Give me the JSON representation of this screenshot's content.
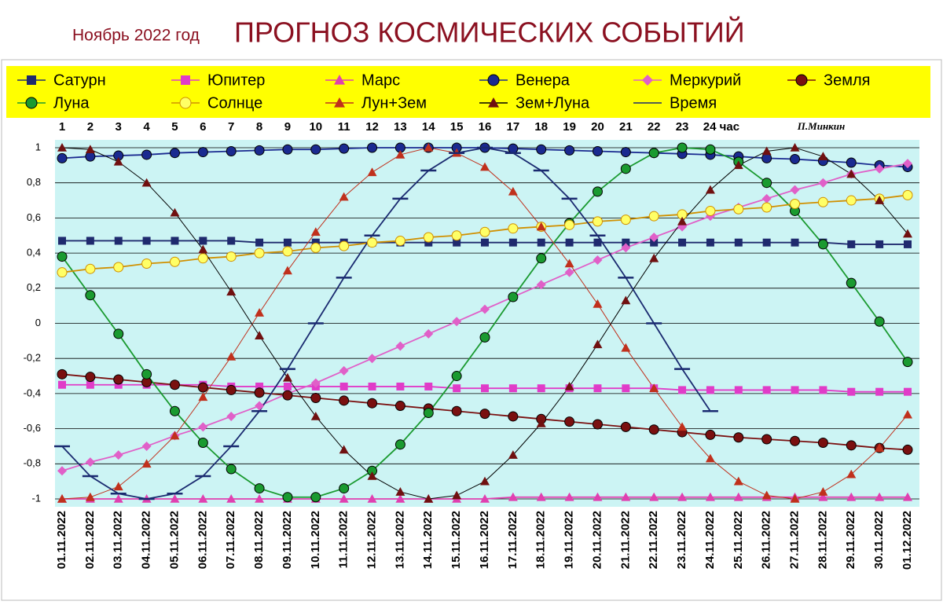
{
  "chart_data": {
    "type": "line",
    "subtitle": "Ноябрь 2022 год",
    "title": "ПРОГНОЗ КОСМИЧЕСКИХ СОБЫТИЙ",
    "hours": [
      "1",
      "2",
      "3",
      "4",
      "5",
      "6",
      "7",
      "8",
      "9",
      "10",
      "11",
      "12",
      "13",
      "14",
      "15",
      "16",
      "17",
      "18",
      "19",
      "20",
      "21",
      "22",
      "23",
      "24 час"
    ],
    "author": "П.Минкин",
    "categories": [
      "01.11.2022",
      "02.11.2022",
      "03.11.2022",
      "04.11.2022",
      "05.11.2022",
      "06.11.2022",
      "07.11.2022",
      "08.11.2022",
      "09.11.2022",
      "10.11.2022",
      "11.11.2022",
      "12.11.2022",
      "13.11.2022",
      "14.11.2022",
      "15.11.2022",
      "16.11.2022",
      "17.11.2022",
      "18.11.2022",
      "19.11.2022",
      "20.11.2022",
      "21.11.2022",
      "22.11.2022",
      "23.11.2022",
      "24.11.2022",
      "25.11.2022",
      "26.11.2022",
      "27.11.2022",
      "28.11.2022",
      "29.11.2022",
      "30.11.2022",
      "01.12.2022"
    ],
    "ylim": [
      -1,
      1
    ],
    "yticks": [
      {
        "value": -1,
        "label": "-1"
      },
      {
        "value": -0.8,
        "label": "-0,8"
      },
      {
        "value": -0.6,
        "label": "-0,6"
      },
      {
        "value": -0.4,
        "label": "-0,4"
      },
      {
        "value": -0.2,
        "label": "-0,2"
      },
      0,
      {
        "value": 0.2,
        "label": "0,2"
      },
      {
        "value": 0.4,
        "label": "0,4"
      },
      {
        "value": 0.6,
        "label": "0,6"
      },
      {
        "value": 0.8,
        "label": "0,8"
      },
      1
    ],
    "grid": true,
    "series": [
      {
        "name": "Сатурн",
        "color": "#1f2a6e",
        "marker": "square",
        "values": [
          0.47,
          0.47,
          0.47,
          0.47,
          0.47,
          0.47,
          0.47,
          0.46,
          0.46,
          0.46,
          0.46,
          0.46,
          0.46,
          0.46,
          0.46,
          0.46,
          0.46,
          0.46,
          0.46,
          0.46,
          0.46,
          0.46,
          0.46,
          0.46,
          0.46,
          0.46,
          0.46,
          0.46,
          0.45,
          0.45,
          0.45
        ]
      },
      {
        "name": "Юпитер",
        "color": "#e03cc8",
        "marker": "square",
        "values": [
          -0.35,
          -0.35,
          -0.35,
          -0.35,
          -0.35,
          -0.35,
          -0.36,
          -0.36,
          -0.36,
          -0.36,
          -0.36,
          -0.36,
          -0.36,
          -0.36,
          -0.37,
          -0.37,
          -0.37,
          -0.37,
          -0.37,
          -0.37,
          -0.37,
          -0.37,
          -0.38,
          -0.38,
          -0.38,
          -0.38,
          -0.38,
          -0.38,
          -0.39,
          -0.39,
          -0.39
        ]
      },
      {
        "name": "Марс",
        "color": "#e040b0",
        "marker": "triangle",
        "values": [
          -1,
          -1,
          -1,
          -1,
          -1,
          -1,
          -1,
          -1,
          -1,
          -1,
          -1,
          -1,
          -1,
          -1,
          -1,
          -1,
          -0.99,
          -0.99,
          -0.99,
          -0.99,
          -0.99,
          -0.99,
          -0.99,
          -0.99,
          -0.99,
          -0.99,
          -0.99,
          -0.99,
          -0.99,
          -0.99,
          -0.99
        ]
      },
      {
        "name": "Венера",
        "color": "#1a2a90",
        "marker": "circle",
        "values": [
          0.94,
          0.95,
          0.955,
          0.96,
          0.97,
          0.975,
          0.98,
          0.985,
          0.99,
          0.99,
          0.995,
          1,
          1,
          1,
          1,
          1,
          0.995,
          0.99,
          0.985,
          0.98,
          0.975,
          0.97,
          0.965,
          0.96,
          0.95,
          0.94,
          0.935,
          0.925,
          0.915,
          0.9,
          0.89
        ]
      },
      {
        "name": "Меркурий",
        "color": "#e060c8",
        "marker": "diamond",
        "values": [
          -0.84,
          -0.79,
          -0.75,
          -0.7,
          -0.64,
          -0.59,
          -0.53,
          -0.47,
          -0.4,
          -0.34,
          -0.27,
          -0.2,
          -0.13,
          -0.06,
          0.01,
          0.08,
          0.15,
          0.22,
          0.29,
          0.36,
          0.43,
          0.49,
          0.55,
          0.61,
          0.66,
          0.71,
          0.76,
          0.8,
          0.85,
          0.88,
          0.91
        ]
      },
      {
        "name": "Земля",
        "color": "#7a1010",
        "marker": "circle",
        "values": [
          -0.29,
          -0.305,
          -0.32,
          -0.335,
          -0.35,
          -0.365,
          -0.38,
          -0.395,
          -0.41,
          -0.425,
          -0.44,
          -0.455,
          -0.47,
          -0.485,
          -0.5,
          -0.515,
          -0.53,
          -0.545,
          -0.56,
          -0.575,
          -0.59,
          -0.605,
          -0.62,
          -0.635,
          -0.65,
          -0.66,
          -0.67,
          -0.68,
          -0.695,
          -0.71,
          -0.72
        ]
      },
      {
        "name": "Луна",
        "color": "#1a9a30",
        "marker": "circle",
        "values": [
          0.38,
          0.16,
          -0.06,
          -0.29,
          -0.5,
          -0.68,
          -0.83,
          -0.94,
          -0.99,
          -0.99,
          -0.94,
          -0.84,
          -0.69,
          -0.51,
          -0.3,
          -0.08,
          0.15,
          0.37,
          0.57,
          0.75,
          0.88,
          0.97,
          1,
          0.99,
          0.92,
          0.8,
          0.64,
          0.45,
          0.23,
          0.01,
          -0.22
        ]
      },
      {
        "name": "Солнце",
        "color": "#ffff66",
        "marker": "circle",
        "values": [
          0.29,
          0.31,
          0.32,
          0.34,
          0.35,
          0.37,
          0.38,
          0.4,
          0.41,
          0.43,
          0.44,
          0.46,
          0.47,
          0.49,
          0.5,
          0.52,
          0.54,
          0.55,
          0.56,
          0.58,
          0.59,
          0.61,
          0.62,
          0.64,
          0.65,
          0.66,
          0.68,
          0.69,
          0.7,
          0.71,
          0.73
        ]
      },
      {
        "name": "Лун+Зем",
        "color": "#c0301c",
        "marker": "triangle",
        "values": [
          -1,
          -0.99,
          -0.93,
          -0.8,
          -0.64,
          -0.42,
          -0.19,
          0.06,
          0.3,
          0.52,
          0.72,
          0.86,
          0.96,
          1,
          0.97,
          0.89,
          0.75,
          0.55,
          0.34,
          0.11,
          -0.14,
          -0.37,
          -0.59,
          -0.77,
          -0.9,
          -0.98,
          -1,
          -0.96,
          -0.86,
          -0.71,
          -0.52
        ]
      },
      {
        "name": "Зем+Луна",
        "color": "#701010",
        "marker": "triangle",
        "values": [
          1,
          0.99,
          0.92,
          0.8,
          0.63,
          0.42,
          0.18,
          -0.07,
          -0.31,
          -0.53,
          -0.72,
          -0.87,
          -0.96,
          -1,
          -0.98,
          -0.9,
          -0.75,
          -0.57,
          -0.36,
          -0.12,
          0.13,
          0.37,
          0.58,
          0.76,
          0.9,
          0.98,
          1,
          0.95,
          0.85,
          0.7,
          0.51
        ]
      },
      {
        "name": "Время",
        "color": "#1a2a70",
        "marker": "dash",
        "values": [
          -0.7,
          -0.87,
          -0.97,
          -1,
          -0.97,
          -0.87,
          -0.7,
          -0.5,
          -0.26,
          0,
          0.26,
          0.5,
          0.71,
          0.87,
          0.97,
          1,
          0.97,
          0.87,
          0.71,
          0.5,
          0.26,
          0,
          -0.26,
          -0.5,
          null,
          null,
          null,
          null,
          null,
          null,
          null
        ]
      }
    ]
  }
}
